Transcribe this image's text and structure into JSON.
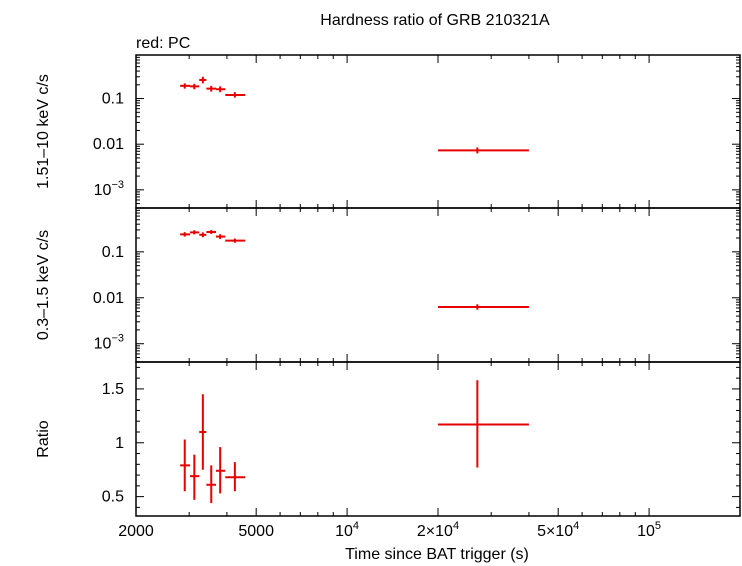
{
  "chart_data": {
    "type": "scatter",
    "title": "Hardness ratio of GRB 210321A",
    "legend_note": "red: PC",
    "xlabel": "Time since BAT trigger (s)",
    "x_scale": "log",
    "xlim": [
      2000,
      200000
    ],
    "x_tick_labels": [
      {
        "value": 2000,
        "label": "2000"
      },
      {
        "value": 5000,
        "label": "5000"
      },
      {
        "value": 10000,
        "label": "10",
        "sup": "4"
      },
      {
        "value": 20000,
        "label": "2×10",
        "sup": "4"
      },
      {
        "value": 50000,
        "label": "5×10",
        "sup": "4"
      },
      {
        "value": 100000,
        "label": "10",
        "sup": "5"
      }
    ],
    "color": "#e60000",
    "panels": [
      {
        "name": "hard",
        "ylabel": "1.51–10 keV c/s",
        "y_scale": "log",
        "ylim": [
          0.0004,
          0.9
        ],
        "y_tick_labels": [
          {
            "value": 0.1,
            "label": "0.1"
          },
          {
            "value": 0.01,
            "label": "0.01"
          },
          {
            "value": 0.001,
            "label": "10",
            "sup": "−3"
          }
        ],
        "points": [
          {
            "x": 2900,
            "xlo": 2800,
            "xhi": 3020,
            "y": 0.19,
            "ylo": 0.165,
            "yhi": 0.215
          },
          {
            "x": 3120,
            "xlo": 3020,
            "xhi": 3240,
            "y": 0.185,
            "ylo": 0.16,
            "yhi": 0.21
          },
          {
            "x": 3330,
            "xlo": 3240,
            "xhi": 3420,
            "y": 0.255,
            "ylo": 0.215,
            "yhi": 0.3
          },
          {
            "x": 3550,
            "xlo": 3420,
            "xhi": 3680,
            "y": 0.165,
            "ylo": 0.142,
            "yhi": 0.19
          },
          {
            "x": 3800,
            "xlo": 3680,
            "xhi": 3950,
            "y": 0.16,
            "ylo": 0.138,
            "yhi": 0.185
          },
          {
            "x": 4250,
            "xlo": 3950,
            "xhi": 4600,
            "y": 0.12,
            "ylo": 0.105,
            "yhi": 0.138
          },
          {
            "x": 27000,
            "xlo": 20000,
            "xhi": 40000,
            "y": 0.0073,
            "ylo": 0.0063,
            "yhi": 0.0085
          }
        ]
      },
      {
        "name": "soft",
        "ylabel": "0.3–1.5 keV c/s",
        "y_scale": "log",
        "ylim": [
          0.0004,
          0.9
        ],
        "y_tick_labels": [
          {
            "value": 0.1,
            "label": "0.1"
          },
          {
            "value": 0.01,
            "label": "0.01"
          },
          {
            "value": 0.001,
            "label": "10",
            "sup": "−3"
          }
        ],
        "points": [
          {
            "x": 2900,
            "xlo": 2800,
            "xhi": 3020,
            "y": 0.24,
            "ylo": 0.215,
            "yhi": 0.268
          },
          {
            "x": 3120,
            "xlo": 3020,
            "xhi": 3240,
            "y": 0.265,
            "ylo": 0.24,
            "yhi": 0.295
          },
          {
            "x": 3330,
            "xlo": 3240,
            "xhi": 3420,
            "y": 0.235,
            "ylo": 0.208,
            "yhi": 0.265
          },
          {
            "x": 3550,
            "xlo": 3420,
            "xhi": 3680,
            "y": 0.27,
            "ylo": 0.245,
            "yhi": 0.3
          },
          {
            "x": 3800,
            "xlo": 3680,
            "xhi": 3950,
            "y": 0.215,
            "ylo": 0.19,
            "yhi": 0.242
          },
          {
            "x": 4250,
            "xlo": 3950,
            "xhi": 4600,
            "y": 0.175,
            "ylo": 0.158,
            "yhi": 0.195
          },
          {
            "x": 27000,
            "xlo": 20000,
            "xhi": 40000,
            "y": 0.0063,
            "ylo": 0.0055,
            "yhi": 0.0072
          }
        ]
      },
      {
        "name": "ratio",
        "ylabel": "Ratio",
        "y_scale": "linear",
        "ylim": [
          0.32,
          1.75
        ],
        "y_tick_labels": [
          {
            "value": 0.5,
            "label": "0.5"
          },
          {
            "value": 1,
            "label": "1"
          },
          {
            "value": 1.5,
            "label": "1.5"
          }
        ],
        "y_minor_ticks": [
          0.4,
          0.6,
          0.7,
          0.8,
          0.9,
          1.1,
          1.2,
          1.3,
          1.4,
          1.6,
          1.7
        ],
        "points": [
          {
            "x": 2900,
            "xlo": 2800,
            "xhi": 3020,
            "y": 0.79,
            "ylo": 0.55,
            "yhi": 1.03
          },
          {
            "x": 3120,
            "xlo": 3020,
            "xhi": 3240,
            "y": 0.69,
            "ylo": 0.47,
            "yhi": 0.89
          },
          {
            "x": 3330,
            "xlo": 3240,
            "xhi": 3420,
            "y": 1.1,
            "ylo": 0.75,
            "yhi": 1.45
          },
          {
            "x": 3550,
            "xlo": 3420,
            "xhi": 3680,
            "y": 0.61,
            "ylo": 0.44,
            "yhi": 0.79
          },
          {
            "x": 3800,
            "xlo": 3680,
            "xhi": 3950,
            "y": 0.74,
            "ylo": 0.53,
            "yhi": 0.96
          },
          {
            "x": 4250,
            "xlo": 3950,
            "xhi": 4600,
            "y": 0.68,
            "ylo": 0.55,
            "yhi": 0.82
          },
          {
            "x": 27000,
            "xlo": 20000,
            "xhi": 40000,
            "y": 1.17,
            "ylo": 0.77,
            "yhi": 1.58
          }
        ]
      }
    ]
  }
}
